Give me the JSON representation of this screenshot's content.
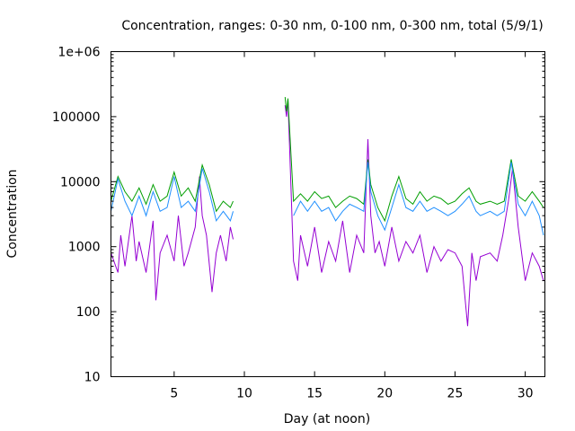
{
  "chart_data": {
    "type": "line",
    "title": "Concentration, ranges: 0-30 nm, 0-100 nm, 0-300 nm, total (5/9/1)",
    "xlabel": "Day (at noon)",
    "ylabel": "Concentration",
    "xlim": [
      0.5,
      31.4
    ],
    "ylim": [
      10,
      1000000
    ],
    "yscale": "log",
    "grid": false,
    "x_ticks": [
      5,
      10,
      15,
      20,
      25,
      30
    ],
    "x_tick_labels": [
      "5",
      "10",
      "15",
      "20",
      "25",
      "30"
    ],
    "y_ticks": [
      10,
      100,
      1000,
      10000,
      100000,
      1000000
    ],
    "y_tick_labels": [
      "10",
      "100",
      "1000",
      "10000",
      "100000",
      "1e+06"
    ],
    "series": [
      {
        "color": "#9500d3",
        "x": [
          0.5,
          1.0,
          1.2,
          1.5,
          2.0,
          2.3,
          2.5,
          3.0,
          3.5,
          3.7,
          4.0,
          4.5,
          5.0,
          5.3,
          5.7,
          6.0,
          6.5,
          6.8,
          7.0,
          7.3,
          7.7,
          8.0,
          8.3,
          8.7,
          9.0,
          9.2,
          12.9,
          13.0,
          13.1,
          13.5,
          13.8,
          14.0,
          14.5,
          15.0,
          15.5,
          16.0,
          16.5,
          17.0,
          17.5,
          18.0,
          18.5,
          18.8,
          19.0,
          19.3,
          19.6,
          20.0,
          20.5,
          21.0,
          21.5,
          22.0,
          22.5,
          23.0,
          23.5,
          24.0,
          24.5,
          25.0,
          25.5,
          25.9,
          26.2,
          26.5,
          26.8,
          27.5,
          28.0,
          28.4,
          28.8,
          29.1,
          29.5,
          30.0,
          30.5,
          31.0,
          31.3
        ],
        "y": [
          800,
          400,
          1500,
          500,
          3000,
          600,
          1200,
          400,
          2500,
          150,
          800,
          1500,
          600,
          3000,
          500,
          800,
          2000,
          12000,
          3000,
          1500,
          200,
          800,
          1500,
          600,
          2000,
          1300,
          150000,
          100000,
          180000,
          600,
          300,
          1500,
          500,
          2000,
          400,
          1200,
          600,
          2500,
          400,
          1500,
          800,
          45000,
          3000,
          800,
          1200,
          500,
          2000,
          600,
          1200,
          800,
          1500,
          400,
          1000,
          600,
          900,
          800,
          500,
          60,
          800,
          300,
          700,
          800,
          600,
          1500,
          5000,
          16000,
          2000,
          300,
          800,
          500,
          300
        ]
      },
      {
        "color": "#009e00",
        "x": [
          0.5,
          1.0,
          1.5,
          2.0,
          2.5,
          3.0,
          3.5,
          4.0,
          4.5,
          5.0,
          5.5,
          6.0,
          6.5,
          7.0,
          7.5,
          8.0,
          8.5,
          9.0,
          9.2,
          12.9,
          13.0,
          13.1,
          13.5,
          14.0,
          14.5,
          15.0,
          15.5,
          16.0,
          16.5,
          17.0,
          17.5,
          18.0,
          18.5,
          18.8,
          19.0,
          19.5,
          20.0,
          20.5,
          21.0,
          21.5,
          22.0,
          22.5,
          23.0,
          23.5,
          24.0,
          24.5,
          25.0,
          25.5,
          26.0,
          26.5,
          26.8,
          27.5,
          28.0,
          28.5,
          29.0,
          29.5,
          30.0,
          30.5,
          31.0,
          31.3
        ],
        "y": [
          5000,
          12000,
          7000,
          5000,
          8000,
          4500,
          9000,
          5000,
          6000,
          14000,
          6000,
          8000,
          5000,
          18000,
          9000,
          3500,
          5000,
          4000,
          5000,
          200000,
          120000,
          190000,
          5000,
          6500,
          5000,
          7000,
          5500,
          6000,
          4000,
          5000,
          6000,
          5500,
          4500,
          22000,
          9000,
          4000,
          2500,
          6000,
          12000,
          5500,
          4500,
          7000,
          5000,
          6000,
          5500,
          4500,
          5000,
          6500,
          8000,
          5000,
          4500,
          5000,
          4500,
          5000,
          22000,
          6000,
          5000,
          7000,
          5000,
          4000
        ]
      },
      {
        "color": "#1f8fff",
        "x": [
          0.5,
          1.0,
          1.5,
          2.0,
          2.5,
          3.0,
          3.5,
          4.0,
          4.5,
          5.0,
          5.5,
          6.0,
          6.5,
          7.0,
          7.5,
          8.0,
          8.5,
          9.0,
          9.2,
          13.5,
          14.0,
          14.5,
          15.0,
          15.5,
          16.0,
          16.5,
          17.0,
          17.5,
          18.0,
          18.5,
          18.8,
          19.0,
          19.5,
          20.0,
          20.5,
          21.0,
          21.5,
          22.0,
          22.5,
          23.0,
          23.5,
          24.0,
          24.5,
          25.0,
          25.5,
          26.0,
          26.5,
          26.8,
          27.5,
          28.0,
          28.5,
          29.0,
          29.5,
          30.0,
          30.5,
          31.0,
          31.3
        ],
        "y": [
          3500,
          11000,
          5000,
          3000,
          6000,
          3000,
          7000,
          3500,
          4000,
          12000,
          4000,
          5000,
          3500,
          16000,
          7000,
          2500,
          3500,
          2500,
          3500,
          3000,
          5000,
          3500,
          5000,
          3500,
          4000,
          2500,
          3500,
          4500,
          4000,
          3500,
          20000,
          7000,
          3000,
          1800,
          4000,
          9000,
          4000,
          3500,
          5000,
          3500,
          4000,
          3500,
          3000,
          3500,
          4500,
          6000,
          3500,
          3000,
          3500,
          3000,
          3500,
          20000,
          4500,
          3000,
          5000,
          3000,
          1500
        ]
      }
    ]
  }
}
